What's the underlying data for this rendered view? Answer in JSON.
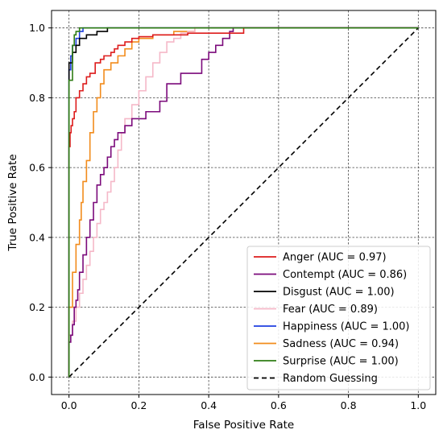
{
  "chart_data": {
    "type": "line",
    "title": "",
    "xlabel": "False Positive Rate",
    "ylabel": "True Positive Rate",
    "xlim": [
      -0.05,
      1.05
    ],
    "ylim": [
      -0.05,
      1.05
    ],
    "x_ticks": [
      "0.0",
      "0.2",
      "0.4",
      "0.6",
      "0.8",
      "1.0"
    ],
    "y_ticks": [
      "0.0",
      "0.2",
      "0.4",
      "0.6",
      "0.8",
      "1.0"
    ],
    "grid": true,
    "grid_style": "dashed",
    "legend_position": "lower right",
    "series": [
      {
        "name": "Anger (AUC = 0.97)",
        "color": "#dd1c1c",
        "x": [
          0.0,
          0.0,
          0.003,
          0.003,
          0.006,
          0.006,
          0.01,
          0.01,
          0.015,
          0.015,
          0.02,
          0.02,
          0.03,
          0.03,
          0.04,
          0.04,
          0.05,
          0.05,
          0.06,
          0.06,
          0.075,
          0.075,
          0.09,
          0.09,
          0.1,
          0.1,
          0.12,
          0.12,
          0.13,
          0.13,
          0.14,
          0.14,
          0.16,
          0.16,
          0.18,
          0.18,
          0.2,
          0.2,
          0.24,
          0.24,
          0.28,
          0.28,
          0.34,
          0.34,
          0.5,
          0.5,
          1.0
        ],
        "y": [
          0.0,
          0.66,
          0.66,
          0.7,
          0.7,
          0.72,
          0.72,
          0.74,
          0.74,
          0.76,
          0.76,
          0.8,
          0.8,
          0.82,
          0.82,
          0.84,
          0.84,
          0.86,
          0.86,
          0.87,
          0.87,
          0.9,
          0.9,
          0.91,
          0.91,
          0.92,
          0.92,
          0.93,
          0.93,
          0.94,
          0.94,
          0.95,
          0.95,
          0.96,
          0.96,
          0.97,
          0.97,
          0.975,
          0.975,
          0.98,
          0.98,
          0.98,
          0.98,
          0.985,
          0.985,
          1.0,
          1.0
        ]
      },
      {
        "name": "Contempt (AUC = 0.86)",
        "color": "#7b0a7b",
        "x": [
          0.0,
          0.0,
          0.005,
          0.005,
          0.01,
          0.01,
          0.015,
          0.015,
          0.02,
          0.02,
          0.025,
          0.025,
          0.03,
          0.03,
          0.04,
          0.04,
          0.05,
          0.05,
          0.06,
          0.06,
          0.07,
          0.07,
          0.08,
          0.08,
          0.09,
          0.09,
          0.1,
          0.1,
          0.11,
          0.11,
          0.12,
          0.12,
          0.13,
          0.13,
          0.14,
          0.14,
          0.16,
          0.16,
          0.18,
          0.18,
          0.22,
          0.22,
          0.26,
          0.26,
          0.28,
          0.28,
          0.32,
          0.32,
          0.38,
          0.38,
          0.4,
          0.4,
          0.42,
          0.42,
          0.44,
          0.44,
          0.46,
          0.46,
          0.47,
          0.47,
          0.5,
          1.0
        ],
        "y": [
          0.0,
          0.1,
          0.1,
          0.12,
          0.12,
          0.15,
          0.15,
          0.2,
          0.2,
          0.22,
          0.22,
          0.25,
          0.25,
          0.3,
          0.3,
          0.35,
          0.35,
          0.4,
          0.4,
          0.45,
          0.45,
          0.5,
          0.5,
          0.55,
          0.55,
          0.58,
          0.58,
          0.6,
          0.6,
          0.63,
          0.63,
          0.66,
          0.66,
          0.68,
          0.68,
          0.7,
          0.7,
          0.72,
          0.72,
          0.74,
          0.74,
          0.76,
          0.76,
          0.79,
          0.79,
          0.84,
          0.84,
          0.87,
          0.87,
          0.91,
          0.91,
          0.93,
          0.93,
          0.95,
          0.95,
          0.97,
          0.97,
          0.99,
          0.99,
          1.0,
          1.0,
          1.0
        ]
      },
      {
        "name": "Disgust (AUC = 1.00)",
        "color": "#000000",
        "x": [
          0.0,
          0.0,
          0.01,
          0.01,
          0.02,
          0.02,
          0.03,
          0.03,
          0.05,
          0.05,
          0.08,
          0.08,
          0.11,
          0.11,
          1.0
        ],
        "y": [
          0.0,
          0.9,
          0.9,
          0.93,
          0.93,
          0.95,
          0.95,
          0.97,
          0.97,
          0.98,
          0.98,
          0.99,
          0.99,
          1.0,
          1.0
        ]
      },
      {
        "name": "Fear (AUC = 0.89)",
        "color": "#f5b8c8",
        "x": [
          0.0,
          0.0,
          0.01,
          0.01,
          0.02,
          0.02,
          0.03,
          0.03,
          0.04,
          0.04,
          0.05,
          0.05,
          0.06,
          0.06,
          0.07,
          0.07,
          0.08,
          0.08,
          0.09,
          0.09,
          0.1,
          0.1,
          0.11,
          0.11,
          0.12,
          0.12,
          0.13,
          0.13,
          0.14,
          0.14,
          0.15,
          0.15,
          0.16,
          0.16,
          0.18,
          0.18,
          0.2,
          0.2,
          0.22,
          0.22,
          0.24,
          0.24,
          0.26,
          0.26,
          0.28,
          0.28,
          0.3,
          0.3,
          0.32,
          0.32,
          0.34,
          0.34,
          0.36,
          0.36,
          1.0
        ],
        "y": [
          0.0,
          0.12,
          0.12,
          0.16,
          0.16,
          0.2,
          0.2,
          0.24,
          0.24,
          0.28,
          0.28,
          0.32,
          0.32,
          0.36,
          0.36,
          0.4,
          0.4,
          0.44,
          0.44,
          0.48,
          0.48,
          0.5,
          0.5,
          0.53,
          0.53,
          0.56,
          0.56,
          0.6,
          0.6,
          0.65,
          0.65,
          0.7,
          0.7,
          0.74,
          0.74,
          0.78,
          0.78,
          0.82,
          0.82,
          0.86,
          0.86,
          0.9,
          0.9,
          0.93,
          0.93,
          0.96,
          0.96,
          0.97,
          0.97,
          0.985,
          0.985,
          0.99,
          0.99,
          1.0,
          1.0
        ]
      },
      {
        "name": "Happiness (AUC = 1.00)",
        "color": "#1f3fe0",
        "x": [
          0.0,
          0.0,
          0.005,
          0.005,
          0.01,
          0.01,
          0.02,
          0.02,
          0.03,
          0.03,
          0.04,
          0.04,
          1.0
        ],
        "y": [
          0.0,
          0.88,
          0.88,
          0.92,
          0.92,
          0.95,
          0.95,
          0.97,
          0.97,
          0.99,
          0.99,
          1.0,
          1.0
        ]
      },
      {
        "name": "Sadness (AUC = 0.94)",
        "color": "#f28c1c",
        "x": [
          0.0,
          0.0,
          0.01,
          0.01,
          0.02,
          0.02,
          0.03,
          0.03,
          0.035,
          0.035,
          0.04,
          0.04,
          0.05,
          0.05,
          0.06,
          0.06,
          0.07,
          0.07,
          0.08,
          0.08,
          0.09,
          0.09,
          0.1,
          0.1,
          0.12,
          0.12,
          0.14,
          0.14,
          0.16,
          0.16,
          0.18,
          0.18,
          0.2,
          0.2,
          0.24,
          0.24,
          0.3,
          0.3,
          0.36,
          0.36,
          1.0
        ],
        "y": [
          0.0,
          0.2,
          0.2,
          0.3,
          0.3,
          0.38,
          0.38,
          0.45,
          0.45,
          0.5,
          0.5,
          0.56,
          0.56,
          0.62,
          0.62,
          0.7,
          0.7,
          0.76,
          0.76,
          0.8,
          0.8,
          0.84,
          0.84,
          0.88,
          0.88,
          0.9,
          0.9,
          0.92,
          0.92,
          0.94,
          0.94,
          0.96,
          0.96,
          0.97,
          0.97,
          0.98,
          0.98,
          0.99,
          0.99,
          1.0,
          1.0
        ]
      },
      {
        "name": "Surprise (AUC = 1.00)",
        "color": "#2f7d15",
        "x": [
          0.0,
          0.0,
          0.01,
          0.01,
          0.015,
          0.015,
          0.02,
          0.02,
          0.03,
          0.03,
          1.0
        ],
        "y": [
          0.0,
          0.85,
          0.85,
          0.95,
          0.95,
          0.98,
          0.98,
          0.99,
          0.99,
          1.0,
          1.0
        ]
      },
      {
        "name": "Random Guessing",
        "color": "#000000",
        "dashed": true,
        "x": [
          0.0,
          1.0
        ],
        "y": [
          0.0,
          1.0
        ]
      }
    ]
  }
}
